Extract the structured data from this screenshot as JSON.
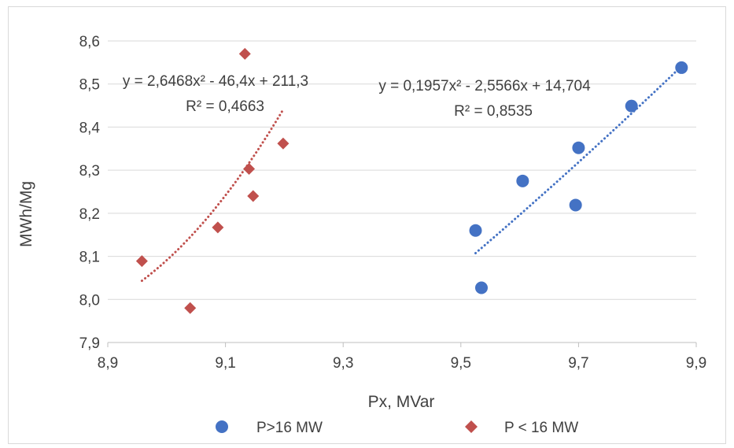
{
  "chart_data": {
    "type": "scatter",
    "title": "",
    "xlabel": "Px, MVar",
    "ylabel": "MWh/Mg",
    "xlim": [
      8.9,
      9.9
    ],
    "ylim": [
      7.9,
      8.6
    ],
    "x_ticks": [
      "8,9",
      "9,1",
      "9,3",
      "9,5",
      "9,7",
      "9,9"
    ],
    "x_tick_values": [
      8.9,
      9.1,
      9.3,
      9.5,
      9.7,
      9.9
    ],
    "y_ticks": [
      "7,9",
      "8,0",
      "8,1",
      "8,2",
      "8,3",
      "8,4",
      "8,5",
      "8,6"
    ],
    "y_tick_values": [
      7.9,
      8.0,
      8.1,
      8.2,
      8.3,
      8.4,
      8.5,
      8.6
    ],
    "grid": "horizontal",
    "legend_position": "bottom",
    "series": [
      {
        "name": "P>16 MW",
        "marker": "circle",
        "color": "#4472c4",
        "points": [
          {
            "x": 9.525,
            "y": 8.16
          },
          {
            "x": 9.535,
            "y": 8.027
          },
          {
            "x": 9.605,
            "y": 8.275
          },
          {
            "x": 9.695,
            "y": 8.219
          },
          {
            "x": 9.7,
            "y": 8.352
          },
          {
            "x": 9.79,
            "y": 8.449
          },
          {
            "x": 9.875,
            "y": 8.538
          }
        ],
        "trendline": {
          "type": "polynomial",
          "order": 2,
          "coefficients": [
            0.1957,
            -2.5566,
            14.704
          ],
          "x_range": [
            9.525,
            9.875
          ],
          "equation": "y = 0,1957x² - 2,5566x + 14,704",
          "r2": "R² = 0,8535"
        }
      },
      {
        "name": "P < 16 MW",
        "marker": "diamond",
        "color": "#c0504d",
        "points": [
          {
            "x": 8.958,
            "y": 8.089
          },
          {
            "x": 9.04,
            "y": 7.98
          },
          {
            "x": 9.087,
            "y": 8.167
          },
          {
            "x": 9.133,
            "y": 8.57
          },
          {
            "x": 9.14,
            "y": 8.303
          },
          {
            "x": 9.147,
            "y": 8.24
          },
          {
            "x": 9.198,
            "y": 8.362
          }
        ],
        "trendline": {
          "type": "polynomial",
          "order": 2,
          "coefficients": [
            2.6468,
            -46.4,
            211.3
          ],
          "x_range": [
            8.958,
            9.198
          ],
          "equation": "y = 2,6468x² - 46,4x + 211,3",
          "r2": "R² = 0,4663"
        }
      }
    ]
  }
}
